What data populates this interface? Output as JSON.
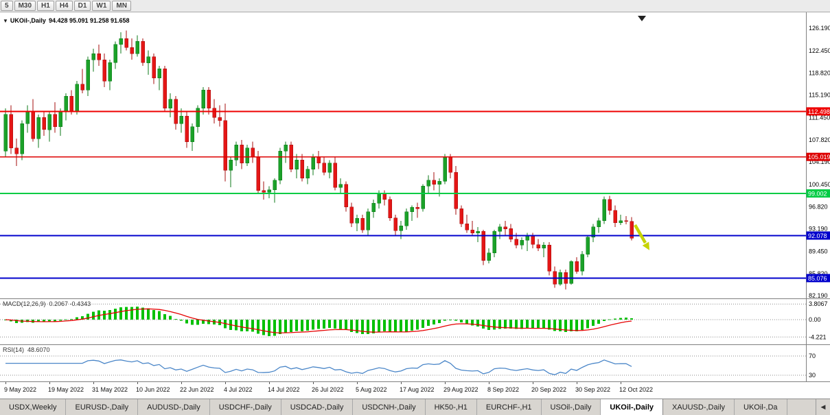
{
  "toolbar": {
    "buttons": [
      "5",
      "M30",
      "H1",
      "H4",
      "D1",
      "W1",
      "MN"
    ]
  },
  "chart": {
    "symbol_period": "UKOil-,Daily",
    "ohlc": "94.428 95.091 91.258 91.658",
    "one_click_icon": "▼",
    "price_axis_labels": [
      "126.190",
      "122.450",
      "118.820",
      "115.190",
      "111.450",
      "107.820",
      "104.190",
      "100.450",
      "96.820",
      "93.190",
      "89.450",
      "85.820",
      "82.190"
    ],
    "horizontal_lines": [
      {
        "price": 112.498,
        "tag": "112.498",
        "color": "#ee0000",
        "width": 2
      },
      {
        "price": 105.019,
        "tag": "105.019",
        "color": "#dd0000",
        "width": 1.5
      },
      {
        "price": 99.002,
        "tag": "99.002",
        "color": "#00cc44",
        "width": 2
      },
      {
        "price": 92.078,
        "tag": "92.078",
        "color": "#0000cc",
        "width": 2
      },
      {
        "price": 85.076,
        "tag": "85.076",
        "color": "#0000cc",
        "width": 2
      }
    ],
    "up_color": "#1ba129",
    "up_border": "#0c7a18",
    "down_color": "#e41616",
    "down_border": "#a50d0d",
    "arrow_color": "#c6d300"
  },
  "chart_data": {
    "type": "candlestick",
    "symbol": "UKOil-,Daily",
    "ylim": [
      82.19,
      126.19
    ],
    "x_tick_labels": [
      {
        "i": 0,
        "label": "9 May 2022"
      },
      {
        "i": 8,
        "label": "19 May 2022"
      },
      {
        "i": 16,
        "label": "31 May 2022"
      },
      {
        "i": 24,
        "label": "10 Jun 2022"
      },
      {
        "i": 32,
        "label": "22 Jun 2022"
      },
      {
        "i": 40,
        "label": "4 Jul 2022"
      },
      {
        "i": 48,
        "label": "14 Jul 2022"
      },
      {
        "i": 56,
        "label": "26 Jul 2022"
      },
      {
        "i": 64,
        "label": "5 Aug 2022"
      },
      {
        "i": 72,
        "label": "17 Aug 2022"
      },
      {
        "i": 80,
        "label": "29 Aug 2022"
      },
      {
        "i": 88,
        "label": "8 Sep 2022"
      },
      {
        "i": 96,
        "label": "20 Sep 2022"
      },
      {
        "i": 104,
        "label": "30 Sep 2022"
      },
      {
        "i": 112,
        "label": "12 Oct 2022"
      }
    ],
    "candles": [
      [
        106.0,
        113.0,
        105.0,
        112.0
      ],
      [
        112.0,
        113.5,
        105.5,
        106.5
      ],
      [
        106.5,
        108.0,
        103.5,
        105.5
      ],
      [
        105.5,
        111.0,
        104.5,
        110.5
      ],
      [
        110.5,
        113.5,
        109.0,
        112.5
      ],
      [
        112.5,
        114.5,
        107.5,
        108.0
      ],
      [
        108.0,
        112.0,
        106.5,
        111.5
      ],
      [
        111.5,
        112.5,
        108.5,
        109.5
      ],
      [
        109.5,
        112.5,
        107.5,
        112.0
      ],
      [
        112.0,
        114.0,
        109.0,
        110.0
      ],
      [
        110.0,
        113.0,
        108.5,
        112.5
      ],
      [
        112.5,
        115.5,
        111.0,
        115.0
      ],
      [
        115.0,
        116.0,
        112.0,
        112.5
      ],
      [
        112.5,
        117.5,
        112.0,
        117.0
      ],
      [
        117.0,
        119.5,
        115.5,
        116.0
      ],
      [
        116.0,
        121.5,
        115.0,
        121.0
      ],
      [
        121.0,
        122.8,
        119.0,
        122.0
      ],
      [
        122.0,
        123.5,
        120.0,
        121.0
      ],
      [
        121.0,
        122.0,
        116.5,
        117.5
      ],
      [
        117.5,
        121.0,
        116.0,
        120.5
      ],
      [
        120.5,
        124.0,
        119.5,
        123.5
      ],
      [
        123.5,
        125.5,
        122.0,
        124.5
      ],
      [
        124.5,
        125.8,
        122.5,
        123.0
      ],
      [
        123.0,
        124.5,
        121.0,
        122.0
      ],
      [
        122.0,
        125.0,
        121.5,
        124.0
      ],
      [
        124.0,
        124.5,
        120.0,
        120.5
      ],
      [
        120.5,
        122.5,
        118.5,
        121.5
      ],
      [
        121.5,
        122.0,
        117.0,
        118.0
      ],
      [
        118.0,
        120.0,
        116.0,
        119.5
      ],
      [
        119.5,
        120.0,
        112.5,
        113.0
      ],
      [
        113.0,
        115.5,
        111.5,
        114.5
      ],
      [
        114.5,
        115.0,
        109.5,
        110.5
      ],
      [
        110.5,
        113.0,
        109.0,
        111.7
      ],
      [
        111.7,
        112.5,
        106.5,
        107.5
      ],
      [
        107.5,
        110.5,
        106.0,
        110.0
      ],
      [
        110.0,
        113.5,
        109.0,
        113.0
      ],
      [
        113.0,
        116.5,
        112.0,
        116.0
      ],
      [
        116.0,
        116.5,
        112.0,
        113.0
      ],
      [
        113.0,
        114.5,
        110.5,
        111.5
      ],
      [
        111.5,
        113.5,
        110.0,
        111.0
      ],
      [
        111.0,
        113.8,
        101.0,
        102.8
      ],
      [
        102.8,
        105.0,
        100.0,
        104.5
      ],
      [
        104.5,
        107.5,
        103.5,
        107.0
      ],
      [
        107.0,
        107.8,
        103.0,
        104.0
      ],
      [
        104.0,
        107.0,
        103.5,
        106.5
      ],
      [
        106.5,
        107.5,
        104.0,
        105.0
      ],
      [
        105.0,
        106.0,
        99.0,
        99.5
      ],
      [
        99.5,
        101.0,
        98.0,
        99.2
      ],
      [
        99.2,
        100.2,
        98.2,
        99.6
      ],
      [
        99.6,
        101.5,
        97.5,
        101.2
      ],
      [
        101.2,
        106.5,
        100.5,
        106.0
      ],
      [
        106.0,
        107.5,
        104.0,
        107.0
      ],
      [
        107.0,
        107.5,
        102.5,
        103.0
      ],
      [
        103.0,
        105.5,
        101.5,
        104.5
      ],
      [
        104.5,
        105.5,
        101.0,
        101.5
      ],
      [
        101.5,
        103.5,
        100.5,
        103.0
      ],
      [
        103.0,
        105.5,
        102.0,
        105.0
      ],
      [
        105.0,
        106.0,
        103.0,
        104.0
      ],
      [
        104.0,
        105.0,
        102.0,
        102.5
      ],
      [
        102.5,
        104.5,
        101.5,
        104.0
      ],
      [
        104.0,
        105.0,
        99.5,
        100.0
      ],
      [
        100.0,
        101.5,
        99.0,
        100.5
      ],
      [
        100.5,
        101.0,
        96.0,
        96.8
      ],
      [
        96.8,
        97.5,
        93.5,
        94.1
      ],
      [
        94.1,
        95.5,
        92.8,
        94.9
      ],
      [
        94.9,
        95.5,
        92.5,
        93.0
      ],
      [
        93.0,
        96.5,
        92.0,
        96.0
      ],
      [
        96.0,
        98.0,
        95.0,
        97.4
      ],
      [
        97.4,
        99.5,
        96.5,
        99.0
      ],
      [
        99.0,
        99.5,
        97.0,
        98.0
      ],
      [
        98.0,
        98.5,
        94.5,
        95.0
      ],
      [
        95.0,
        95.5,
        92.0,
        92.9
      ],
      [
        92.9,
        94.5,
        91.5,
        93.7
      ],
      [
        93.7,
        96.5,
        93.0,
        96.0
      ],
      [
        96.0,
        97.0,
        94.5,
        96.7
      ],
      [
        96.7,
        97.5,
        95.0,
        96.5
      ],
      [
        96.5,
        100.5,
        96.0,
        100.2
      ],
      [
        100.2,
        102.0,
        99.0,
        101.2
      ],
      [
        101.2,
        102.5,
        99.5,
        100.5
      ],
      [
        100.5,
        101.5,
        98.5,
        101.0
      ],
      [
        101.0,
        105.5,
        100.5,
        105.0
      ],
      [
        105.0,
        105.5,
        101.5,
        102.5
      ],
      [
        102.5,
        103.5,
        95.5,
        96.5
      ],
      [
        96.5,
        97.0,
        93.5,
        94.0
      ],
      [
        94.0,
        95.5,
        92.5,
        93.0
      ],
      [
        93.0,
        94.5,
        92.0,
        92.5
      ],
      [
        92.5,
        93.5,
        91.0,
        92.8
      ],
      [
        92.8,
        93.0,
        87.2,
        88.0
      ],
      [
        88.0,
        90.0,
        87.5,
        89.2
      ],
      [
        89.2,
        93.0,
        88.5,
        92.8
      ],
      [
        92.8,
        94.0,
        91.5,
        93.5
      ],
      [
        93.5,
        94.5,
        92.0,
        93.2
      ],
      [
        93.2,
        94.0,
        91.0,
        91.5
      ],
      [
        91.5,
        92.5,
        90.0,
        90.5
      ],
      [
        90.5,
        91.8,
        89.8,
        91.3
      ],
      [
        91.3,
        92.5,
        89.5,
        92.0
      ],
      [
        92.0,
        92.5,
        90.0,
        90.6
      ],
      [
        90.6,
        91.5,
        89.5,
        90.0
      ],
      [
        90.0,
        91.0,
        88.5,
        90.5
      ],
      [
        90.5,
        91.0,
        85.5,
        86.2
      ],
      [
        86.2,
        87.0,
        83.5,
        84.1
      ],
      [
        84.1,
        86.5,
        83.8,
        86.0
      ],
      [
        86.0,
        86.5,
        83.2,
        84.2
      ],
      [
        84.2,
        88.0,
        84.0,
        87.8
      ],
      [
        87.8,
        88.5,
        85.8,
        86.2
      ],
      [
        86.2,
        89.5,
        85.5,
        89.0
      ],
      [
        89.0,
        92.0,
        88.5,
        91.8
      ],
      [
        91.8,
        94.0,
        91.0,
        93.5
      ],
      [
        93.5,
        95.0,
        92.5,
        94.5
      ],
      [
        94.5,
        98.5,
        94.0,
        98.0
      ],
      [
        98.0,
        98.6,
        95.5,
        96.2
      ],
      [
        96.2,
        97.0,
        93.5,
        94.2
      ],
      [
        94.2,
        95.5,
        93.8,
        94.5
      ],
      [
        94.5,
        95.3,
        93.9,
        94.4
      ],
      [
        94.428,
        95.091,
        91.258,
        91.658
      ]
    ]
  },
  "macd": {
    "name": "MACD(12,26,9)",
    "values": "0.2067 -0.4343",
    "fast": 12,
    "slow": 26,
    "signal": 9,
    "axis_labels": [
      "3.8067",
      "0.00",
      "-4.221"
    ],
    "axis_values": [
      3.8067,
      0,
      -4.221
    ],
    "histogram_color": "#00c000",
    "signal_color": "#e60000"
  },
  "rsi": {
    "name": "RSI(14)",
    "value": "48.6070",
    "period": 14,
    "levels": [
      70,
      30
    ],
    "level_labels": [
      "70",
      "30"
    ],
    "line_color": "#4a86c8"
  },
  "tabs": {
    "items": [
      "USDX,Weekly",
      "EURUSD-,Daily",
      "AUDUSD-,Daily",
      "USDCHF-,Daily",
      "USDCAD-,Daily",
      "USDCNH-,Daily",
      "HK50-,H1",
      "EURCHF-,H1",
      "USOil-,Daily",
      "UKOil-,Daily",
      "XAUUSD-,Daily",
      "UKOil-,Da"
    ],
    "active": "UKOil-,Daily",
    "scroll_left_icon": "◀"
  }
}
